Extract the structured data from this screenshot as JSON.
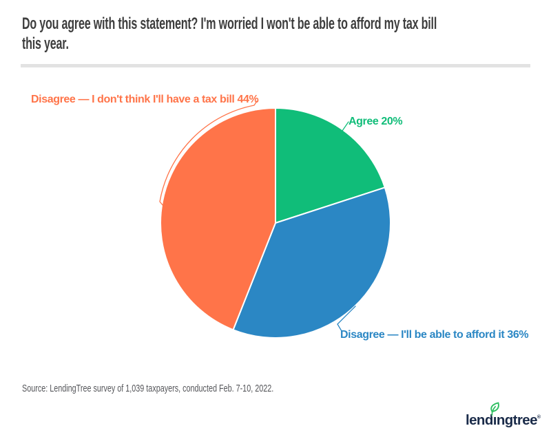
{
  "header": {
    "title_lines": [
      "Do you agree with this statement? I'm worried I won't be able to afford my tax bill",
      "this year."
    ]
  },
  "chart_data": {
    "type": "pie",
    "title": "Do you agree with this statement? I'm worried I won't be able to afford my tax bill this year.",
    "start_angle_deg": 0,
    "direction": "clockwise",
    "labels_position": "outside",
    "slices": [
      {
        "label": "Agree",
        "value": 20,
        "display": "Agree 20%",
        "color": "#10bd79"
      },
      {
        "label": "Disagree — I'll be able to afford it",
        "value": 36,
        "display": "Disagree — I'll be able to afford it 36%",
        "color": "#2b87c4"
      },
      {
        "label": "Disagree — I don't think I'll have a tax bill",
        "value": 44,
        "display": "Disagree — I don't think I'll have a tax bill 44%",
        "color": "#ff7449"
      }
    ]
  },
  "footer": {
    "source": "Source: LendingTree survey of 1,039 taxpayers, conducted Feb. 7-10, 2022.",
    "logo": {
      "wordmark": "lendingtree",
      "registered": "®",
      "navy": "#1a2b49",
      "leaf_green": "#2cbe60"
    }
  }
}
